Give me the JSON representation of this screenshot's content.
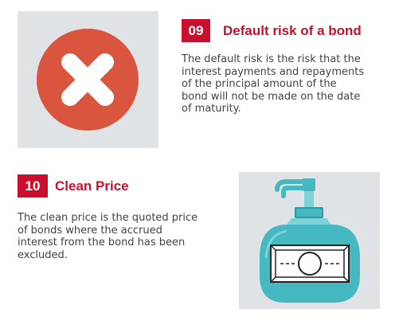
{
  "sections": [
    {
      "number": "09",
      "title": "Default risk of a bond",
      "description": "The default risk is the risk that the interest payments and repayments of the principal amount of the bond will not be made on the date of maturity.",
      "icon": "cross-circle-icon"
    },
    {
      "number": "10",
      "title": "Clean Price",
      "description": "The clean price is the quoted price of bonds where the accrued interest from the bond has been excluded.",
      "icon": "soap-dispenser-banknote-icon"
    }
  ],
  "colors": {
    "accent": "#c8102e",
    "panel": "#dfe3e6",
    "cross_circle": "#d9553d",
    "bottle": "#45b8c1",
    "bottle_dark": "#2f9aa3",
    "text": "#3f4247"
  }
}
